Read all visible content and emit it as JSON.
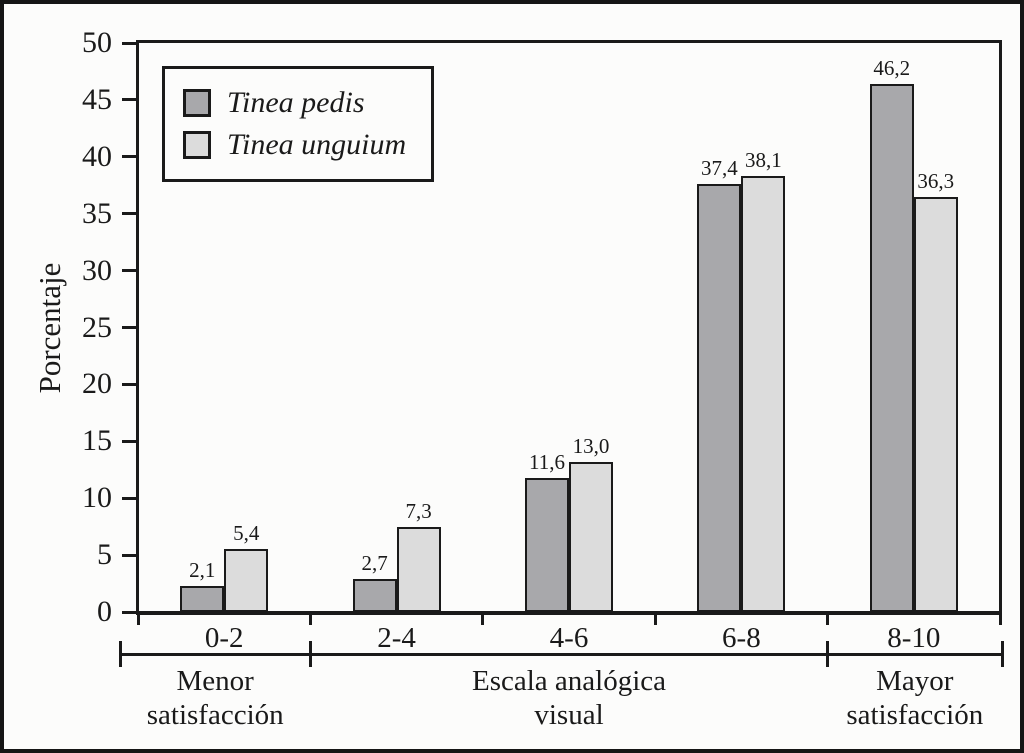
{
  "figure": {
    "background": "#fcfcfb",
    "line_color": "#1a1a1a"
  },
  "chart_data": {
    "type": "bar",
    "ylabel": "Porcentaje",
    "ylim": [
      0,
      50
    ],
    "ytick_step": 5,
    "yticks": [
      0,
      5,
      10,
      15,
      20,
      25,
      30,
      35,
      40,
      45,
      50
    ],
    "categories": [
      "0-2",
      "2-4",
      "4-6",
      "6-8",
      "8-10"
    ],
    "series": [
      {
        "name": "Tinea pedis",
        "color": "#a8a8ab",
        "values": [
          2.1,
          2.7,
          11.6,
          37.4,
          46.2
        ],
        "value_labels": [
          "2,1",
          "2,7",
          "11,6",
          "37,4",
          "46,2"
        ]
      },
      {
        "name": "Tinea unguium",
        "color": "#dcdcdc",
        "values": [
          5.4,
          7.3,
          13.0,
          38.1,
          36.3
        ],
        "value_labels": [
          "5,4",
          "7,3",
          "13,0",
          "38,1",
          "36,3"
        ]
      }
    ],
    "axis_groups": [
      {
        "lines": [
          "Menor",
          "satisfacción"
        ],
        "from": 0,
        "to": 1
      },
      {
        "lines": [
          "Escala analógica",
          "visual"
        ],
        "from": 1,
        "to": 4
      },
      {
        "lines": [
          "Mayor",
          "satisfacción"
        ],
        "from": 4,
        "to": 5
      }
    ],
    "decimal_separator": ",",
    "legend_position": "top-left",
    "grid": false
  }
}
